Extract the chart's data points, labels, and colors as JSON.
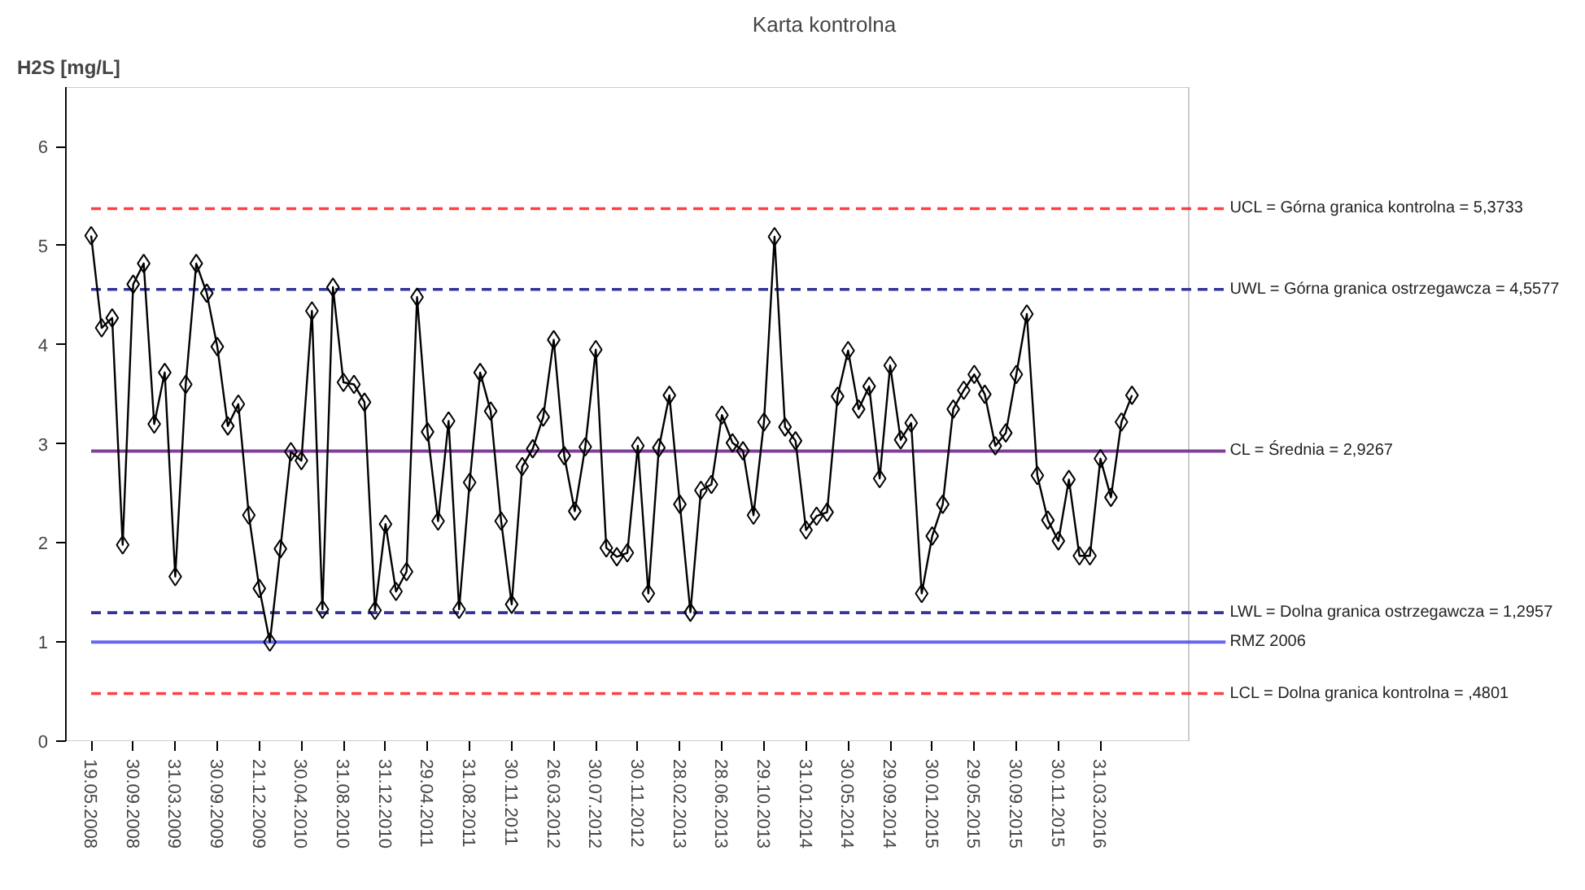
{
  "chart_data": {
    "type": "line",
    "title": "Karta kontrolna",
    "ylabel": "H2S [mg/L]",
    "categories": [
      "19.05.2008",
      null,
      null,
      null,
      "30.09.2008",
      null,
      null,
      null,
      "31.03.2009",
      null,
      null,
      null,
      "30.09.2009",
      null,
      null,
      null,
      "21.12.2009",
      null,
      null,
      null,
      "30.04.2010",
      null,
      null,
      null,
      "31.08.2010",
      null,
      null,
      null,
      "31.12.2010",
      null,
      null,
      null,
      "29.04.2011",
      null,
      null,
      null,
      "31.08.2011",
      null,
      null,
      null,
      "30.11.2011",
      null,
      null,
      null,
      "26.03.2012",
      null,
      null,
      null,
      "30.07.2012",
      null,
      null,
      null,
      "30.11.2012",
      null,
      null,
      null,
      "28.02.2013",
      null,
      null,
      null,
      "28.06.2013",
      null,
      null,
      null,
      "29.10.2013",
      null,
      null,
      null,
      "31.01.2014",
      null,
      null,
      null,
      "30.05.2014",
      null,
      null,
      null,
      "29.09.2014",
      null,
      null,
      null,
      "30.01.2015",
      null,
      null,
      null,
      "29.05.2015",
      null,
      null,
      null,
      "30.09.2015",
      null,
      null,
      null,
      "30.11.2015",
      null,
      null,
      null,
      "31.03.2016",
      null,
      null,
      null
    ],
    "series": [
      {
        "color": "#000000",
        "values": [
          5.1,
          4.17,
          4.27,
          1.98,
          4.61,
          4.82,
          3.2,
          3.72,
          1.66,
          3.6,
          4.82,
          4.52,
          3.98,
          3.18,
          3.4,
          2.28,
          1.54,
          1.0,
          1.94,
          2.92,
          2.83,
          4.34,
          1.33,
          4.58,
          3.62,
          3.6,
          3.42,
          1.32,
          2.19,
          1.51,
          1.71,
          4.48,
          3.12,
          2.22,
          3.23,
          1.33,
          2.61,
          3.72,
          3.33,
          2.22,
          1.38,
          2.77,
          2.95,
          3.27,
          4.05,
          2.88,
          2.32,
          2.97,
          3.95,
          1.95,
          1.86,
          1.9,
          2.98,
          1.49,
          2.96,
          3.49,
          2.39,
          1.3,
          2.53,
          2.59,
          3.29,
          3.01,
          2.93,
          2.28,
          3.22,
          5.09,
          3.17,
          3.03,
          2.13,
          2.27,
          2.31,
          3.48,
          3.94,
          3.35,
          3.58,
          2.65,
          3.79,
          3.04,
          3.21,
          1.49,
          2.07,
          2.39,
          3.35,
          3.54,
          3.7,
          3.5,
          2.98,
          3.11,
          3.7,
          4.31,
          2.68,
          2.23,
          2.02,
          2.64,
          1.87,
          1.87,
          2.85,
          2.46,
          3.22,
          3.49
        ]
      }
    ],
    "ylim": [
      0,
      6.6
    ],
    "yticks": [
      0,
      1,
      2,
      3,
      4,
      5,
      6
    ],
    "grid": false,
    "marker": "diamond",
    "line_style": "solid",
    "ref_lines": [
      {
        "axis": "y",
        "value": 5.3733,
        "label": "UCL = Górna granica kontrolna = 5,3733",
        "color": "#ff4040",
        "line_style": "dashed"
      },
      {
        "axis": "y",
        "value": 4.5577,
        "label": "UWL = Górna granica ostrzegawcza = 4,5577",
        "color": "#333399",
        "line_style": "dashed"
      },
      {
        "axis": "y",
        "value": 2.9267,
        "label": "CL = Średnia = 2,9267",
        "color": "#7f3f98",
        "line_style": "solid"
      },
      {
        "axis": "y",
        "value": 1.2957,
        "label": "LWL = Dolna granica ostrzegawcza = 1,2957",
        "color": "#333399",
        "line_style": "dashed"
      },
      {
        "axis": "y",
        "value": 1.0,
        "label": "RMZ 2006",
        "color": "#6666ee",
        "line_style": "solid"
      },
      {
        "axis": "y",
        "value": 0.4801,
        "label": "LCL = Dolna granica kontrolna = ,4801",
        "color": "#ff4040",
        "line_style": "dashed"
      }
    ]
  }
}
